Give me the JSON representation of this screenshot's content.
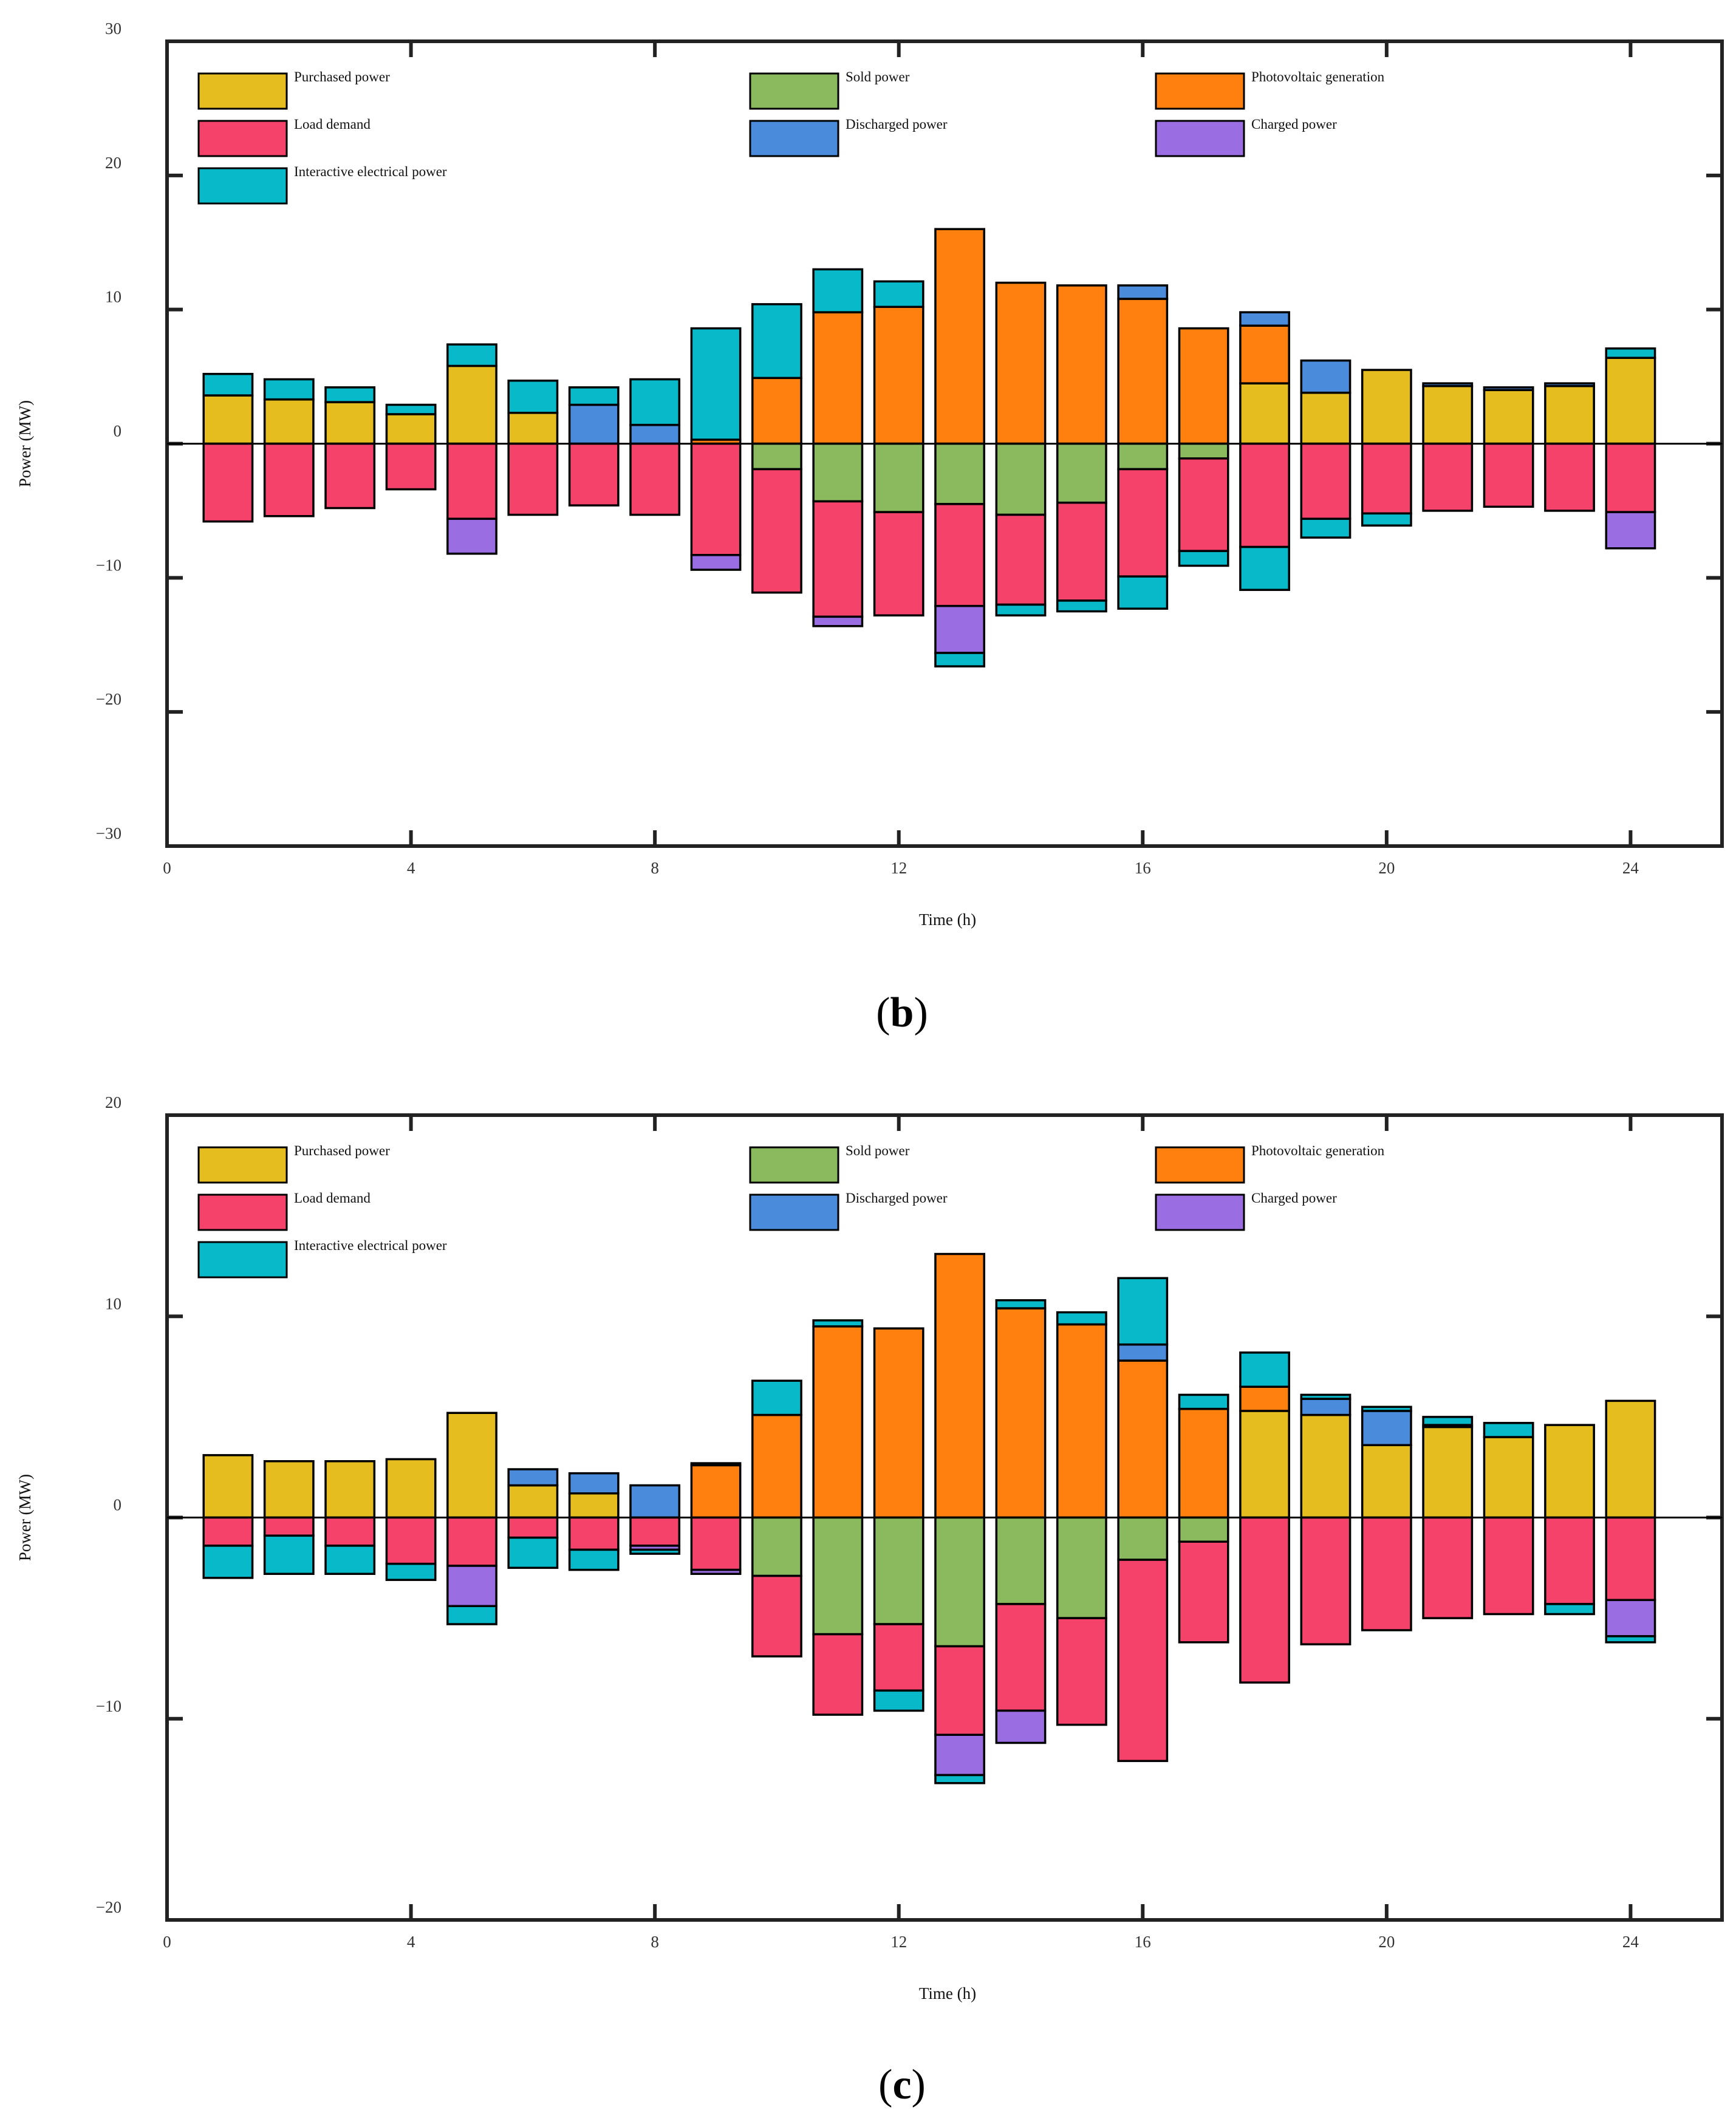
{
  "colors": {
    "purchased": "#E6BD1F",
    "sold": "#8BBA5E",
    "pv": "#FF800E",
    "load": "#F5426A",
    "discharged": "#4A8BDB",
    "charged": "#9B6DE3",
    "interactive": "#08B9C9"
  },
  "chart_data": [
    {
      "type": "bar",
      "stacking": "stacked-positive-negative",
      "panel_label": {
        "open": "(",
        "letter": "b",
        "close": ")"
      },
      "xlabel": "Time (h)",
      "ylabel": "Power (MW)",
      "xlim": [
        0,
        25.5
      ],
      "ylim": [
        -30,
        30
      ],
      "xticks": [
        0,
        4,
        8,
        12,
        16,
        20,
        24
      ],
      "yticks": [
        30,
        20,
        10,
        0,
        -10,
        -20,
        -30
      ],
      "ytick_labels": [
        "30",
        "20",
        "10",
        "0",
        "−10",
        "−20",
        "−30"
      ],
      "grid": false,
      "legend_position": "top",
      "legend": [
        {
          "key": "purchased",
          "label": "Purchased power"
        },
        {
          "key": "sold",
          "label": "Sold power"
        },
        {
          "key": "pv",
          "label": "Photovoltaic generation"
        },
        {
          "key": "load",
          "label": "Load demand"
        },
        {
          "key": "discharged",
          "label": "Discharged power"
        },
        {
          "key": "charged",
          "label": "Charged power"
        },
        {
          "key": "interactive",
          "label": "Interactive electrical power"
        }
      ],
      "hours": [
        1,
        2,
        3,
        4,
        5,
        6,
        7,
        8,
        9,
        10,
        11,
        12,
        13,
        14,
        15,
        16,
        17,
        18,
        19,
        20,
        21,
        22,
        23,
        24
      ],
      "series": [
        {
          "key": "purchased",
          "name": "Purchased power",
          "values": [
            3.6,
            3.3,
            3.1,
            2.2,
            5.8,
            2.3,
            0,
            0,
            0,
            0,
            0,
            0,
            0,
            0,
            0,
            0,
            0,
            4.5,
            3.8,
            5.5,
            4.3,
            4.0,
            4.3,
            6.4
          ]
        },
        {
          "key": "pv",
          "name": "Photovoltaic generation",
          "values": [
            0,
            0,
            0,
            0,
            0,
            0,
            0,
            0,
            0.3,
            4.9,
            9.8,
            10.2,
            16.0,
            12.0,
            11.8,
            10.8,
            8.6,
            4.3,
            0,
            0,
            0,
            0,
            0,
            0
          ]
        },
        {
          "key": "discharged",
          "name": "Discharged power",
          "values": [
            0,
            0,
            0,
            0,
            0,
            0,
            2.9,
            1.4,
            0,
            0,
            0,
            0,
            0,
            0,
            0,
            1.0,
            0,
            1.0,
            2.4,
            0,
            0.2,
            0.2,
            0.2,
            0
          ]
        },
        {
          "key": "interactive",
          "name": "Interactive electrical power",
          "values": [
            1.6,
            1.5,
            1.1,
            0.7,
            1.6,
            2.4,
            1.3,
            3.4,
            8.3,
            5.5,
            3.2,
            1.9,
            0,
            0,
            0,
            0,
            0,
            0,
            0,
            0,
            0,
            0,
            0,
            0.7
          ]
        },
        {
          "key": "sold",
          "name": "Sold power",
          "values": [
            0,
            0,
            0,
            0,
            0,
            0,
            0,
            0,
            0,
            -1.9,
            -4.3,
            -5.1,
            -4.5,
            -5.3,
            -4.4,
            -1.9,
            -1.1,
            0,
            0,
            0,
            0,
            0,
            0,
            0
          ]
        },
        {
          "key": "load",
          "name": "Load demand",
          "values": [
            -5.8,
            -5.4,
            -4.8,
            -3.4,
            -5.6,
            -5.3,
            -4.6,
            -5.3,
            -8.3,
            -9.2,
            -8.6,
            -7.7,
            -7.6,
            -6.7,
            -7.3,
            -8.0,
            -6.9,
            -7.7,
            -5.6,
            -5.2,
            -5.0,
            -4.7,
            -5.0,
            -5.1
          ]
        },
        {
          "key": "charged",
          "name": "Charged power",
          "values": [
            0,
            0,
            0,
            0,
            -2.6,
            0,
            0,
            0,
            -1.1,
            0,
            -0.7,
            0,
            -3.5,
            0,
            0,
            0,
            0,
            0,
            0,
            0,
            0,
            0,
            0,
            -2.7
          ]
        },
        {
          "key": "interactive",
          "name": "Interactive electrical power",
          "values": [
            0,
            0,
            0,
            0,
            0,
            0,
            0,
            0,
            0,
            0,
            0,
            0,
            -1.0,
            -0.8,
            -0.8,
            -2.4,
            -1.1,
            -3.2,
            -1.4,
            -0.9,
            0,
            0,
            0,
            0
          ]
        }
      ]
    },
    {
      "type": "bar",
      "stacking": "stacked-positive-negative",
      "panel_label": {
        "open": "(",
        "letter": "c",
        "close": ")"
      },
      "xlabel": "Time (h)",
      "ylabel": "Power (MW)",
      "xlim": [
        0,
        25.5
      ],
      "ylim": [
        -20,
        20
      ],
      "xticks": [
        0,
        4,
        8,
        12,
        16,
        20,
        24
      ],
      "yticks": [
        20,
        10,
        0,
        -10,
        -20
      ],
      "ytick_labels": [
        "20",
        "10",
        "0",
        "−10",
        "−20"
      ],
      "grid": false,
      "legend_position": "top",
      "legend": [
        {
          "key": "purchased",
          "label": "Purchased power"
        },
        {
          "key": "sold",
          "label": "Sold power"
        },
        {
          "key": "pv",
          "label": "Photovoltaic generation"
        },
        {
          "key": "load",
          "label": "Load demand"
        },
        {
          "key": "discharged",
          "label": "Discharged power"
        },
        {
          "key": "charged",
          "label": "Charged power"
        },
        {
          "key": "interactive",
          "label": "Interactive electrical power"
        }
      ],
      "hours": [
        1,
        2,
        3,
        4,
        5,
        6,
        7,
        8,
        9,
        10,
        11,
        12,
        13,
        14,
        15,
        16,
        17,
        18,
        19,
        20,
        21,
        22,
        23,
        24
      ],
      "series": [
        {
          "key": "purchased",
          "name": "Purchased power",
          "values": [
            3.1,
            2.8,
            2.8,
            2.9,
            5.2,
            1.6,
            1.2,
            0,
            0,
            0,
            0,
            0,
            0,
            0,
            0,
            0,
            0,
            5.3,
            5.1,
            3.6,
            4.5,
            4.0,
            4.6,
            5.8
          ]
        },
        {
          "key": "pv",
          "name": "Photovoltaic generation",
          "values": [
            0,
            0,
            0,
            0,
            0,
            0,
            0,
            0,
            2.6,
            5.1,
            9.5,
            9.4,
            13.1,
            10.4,
            9.6,
            7.8,
            5.4,
            1.2,
            0,
            0,
            0,
            0,
            0,
            0
          ]
        },
        {
          "key": "discharged",
          "name": "Discharged power",
          "values": [
            0,
            0,
            0,
            0,
            0,
            0.8,
            1.0,
            1.6,
            0,
            0,
            0,
            0,
            0,
            0,
            0,
            0.8,
            0,
            0,
            0.8,
            1.7,
            0.1,
            0,
            0,
            0
          ]
        },
        {
          "key": "interactive",
          "name": "Interactive electrical power",
          "values": [
            0,
            0,
            0,
            0,
            0,
            0,
            0,
            0,
            0.1,
            1.7,
            0.3,
            0,
            0,
            0.4,
            0.6,
            3.3,
            0.7,
            1.7,
            0.2,
            0.2,
            0.4,
            0.7,
            0,
            0
          ]
        },
        {
          "key": "sold",
          "name": "Sold power",
          "values": [
            0,
            0,
            0,
            0,
            0,
            0,
            0,
            0,
            0,
            -2.9,
            -5.8,
            -5.3,
            -6.4,
            -4.3,
            -5.0,
            -2.1,
            -1.2,
            0,
            0,
            0,
            0,
            0,
            0,
            0
          ]
        },
        {
          "key": "load",
          "name": "Load demand",
          "values": [
            -1.4,
            -0.9,
            -1.4,
            -2.3,
            -2.4,
            -1.0,
            -1.6,
            -1.4,
            -2.6,
            -4.0,
            -4.0,
            -3.3,
            -4.4,
            -5.3,
            -5.3,
            -10.0,
            -5.0,
            -8.2,
            -6.3,
            -5.6,
            -5.0,
            -4.8,
            -4.3,
            -4.1
          ]
        },
        {
          "key": "charged",
          "name": "Charged power",
          "values": [
            0,
            0,
            0,
            0,
            -2.0,
            0,
            0,
            -0.2,
            -0.2,
            0,
            0,
            0,
            -2.0,
            -1.6,
            0,
            0,
            0,
            0,
            0,
            0,
            0,
            0,
            0,
            -1.8
          ]
        },
        {
          "key": "interactive",
          "name": "Interactive electrical power",
          "values": [
            -1.6,
            -1.9,
            -1.4,
            -0.8,
            -0.9,
            -1.5,
            -1.0,
            -0.2,
            0,
            0,
            0,
            -1.0,
            -0.4,
            0,
            0,
            0,
            0,
            0,
            0,
            0,
            0,
            0,
            -0.5,
            -0.3
          ]
        }
      ]
    }
  ]
}
